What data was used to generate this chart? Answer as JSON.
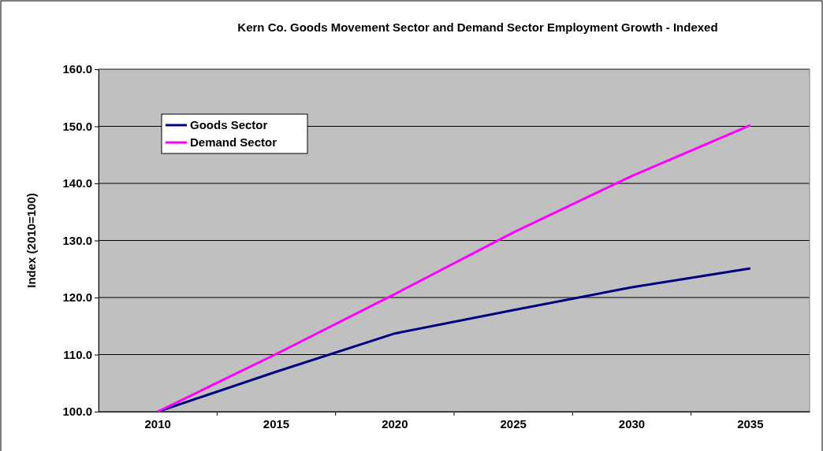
{
  "chart_data": {
    "type": "line",
    "title": "Kern Co. Goods Movement Sector and Demand Sector Employment Growth - Indexed",
    "ylabel": "Index (2010=100)",
    "categories": [
      "2010",
      "2015",
      "2020",
      "2025",
      "2030",
      "2035"
    ],
    "series": [
      {
        "name": "Goods Sector",
        "color": "#000080",
        "values": [
          100,
          107.0,
          113.7,
          117.8,
          121.8,
          125.1
        ]
      },
      {
        "name": "Demand Sector",
        "color": "#ff00ff",
        "values": [
          100,
          110.1,
          120.6,
          131.4,
          141.3,
          150.2
        ]
      }
    ],
    "ylim": [
      100,
      160
    ],
    "yticks": [
      {
        "value": 100,
        "label": "100.0"
      },
      {
        "value": 110,
        "label": "110.0"
      },
      {
        "value": 120,
        "label": "120.0"
      },
      {
        "value": 130,
        "label": "130.0"
      },
      {
        "value": 140,
        "label": "140.0"
      },
      {
        "value": 150,
        "label": "150.0"
      },
      {
        "value": 160,
        "label": "160.0"
      }
    ],
    "grid": "y",
    "legend": "top left",
    "marker": "none",
    "line_style": "solid"
  }
}
